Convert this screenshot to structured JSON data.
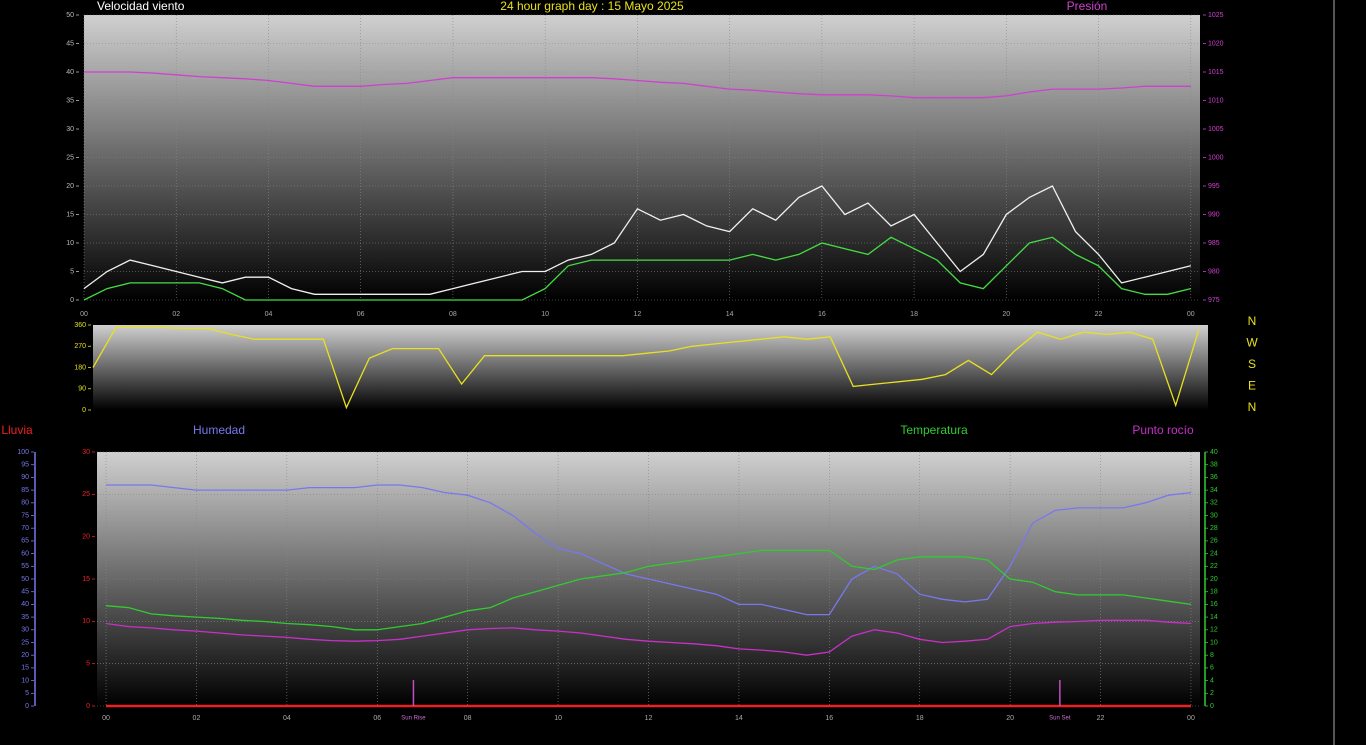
{
  "chart_data": [
    {
      "type": "line",
      "title": "24 hour graph day : 15 Mayo 2025",
      "ylabel": "Velocidad viento",
      "x": [
        0,
        0.5,
        1,
        1.5,
        2,
        2.5,
        3,
        3.5,
        4,
        4.5,
        5,
        5.5,
        6,
        6.5,
        7,
        7.5,
        8,
        8.5,
        9,
        9.5,
        10,
        10.5,
        11,
        11.5,
        12,
        12.5,
        13,
        13.5,
        14,
        14.5,
        15,
        15.5,
        16,
        16.5,
        17,
        17.5,
        18,
        18.5,
        19,
        19.5,
        20,
        20.5,
        21,
        21.5,
        22,
        22.5,
        23,
        23.5,
        24
      ],
      "xlim": [
        0,
        24.2
      ],
      "xticks": [
        {
          "value": 0,
          "label": "00"
        },
        {
          "value": 2,
          "label": "02"
        },
        {
          "value": 4,
          "label": "04"
        },
        {
          "value": 6,
          "label": "06"
        },
        {
          "value": 8,
          "label": "08"
        },
        10,
        12,
        14,
        16,
        18,
        20,
        22,
        {
          "value": 24,
          "label": "00"
        }
      ],
      "ylim": [
        0,
        50
      ],
      "yticks": [
        0,
        5,
        10,
        15,
        20,
        25,
        30,
        35,
        40,
        45,
        50
      ],
      "y2lim": [
        975,
        1025
      ],
      "y2ticks": [
        975,
        980,
        985,
        990,
        995,
        1000,
        1005,
        1010,
        1015,
        1020,
        1025
      ],
      "grid": true,
      "series": [
        {
          "color": "#f0f0f0",
          "values": [
            2,
            5,
            7,
            6,
            5,
            4,
            3,
            4,
            4,
            2,
            1,
            1,
            1,
            1,
            1,
            1,
            2,
            3,
            4,
            5,
            5,
            7,
            8,
            10,
            16,
            14,
            15,
            13,
            12,
            16,
            14,
            18,
            20,
            15,
            17,
            13,
            15,
            10,
            5,
            8,
            15,
            18,
            20,
            12,
            8,
            3,
            4,
            5,
            6
          ]
        },
        {
          "color": "#44dd44",
          "values": [
            0,
            2,
            3,
            3,
            3,
            3,
            2,
            0,
            0,
            0,
            0,
            0,
            0,
            0,
            0,
            0,
            0,
            0,
            0,
            0,
            2,
            6,
            7,
            7,
            7,
            7,
            7,
            7,
            7,
            8,
            7,
            8,
            10,
            9,
            8,
            11,
            9,
            7,
            3,
            2,
            6,
            10,
            11,
            8,
            6,
            2,
            1,
            1,
            2
          ]
        },
        {
          "name": "Presión",
          "axis": "y2",
          "color": "#d040d0",
          "values": [
            1015,
            1015,
            1015,
            1014.8,
            1014.5,
            1014.2,
            1014,
            1013.8,
            1013.5,
            1013,
            1012.5,
            1012.5,
            1012.5,
            1012.8,
            1013,
            1013.5,
            1014,
            1014,
            1014,
            1014,
            1014,
            1014,
            1014,
            1013.8,
            1013.5,
            1013.2,
            1013,
            1012.5,
            1012,
            1011.8,
            1011.5,
            1011.2,
            1011,
            1011,
            1011,
            1010.8,
            1010.5,
            1010.5,
            1010.5,
            1010.5,
            1010.8,
            1011.5,
            1012,
            1012,
            1012,
            1012.2,
            1012.5,
            1012.5,
            1012.5
          ]
        }
      ]
    },
    {
      "type": "line",
      "x": [
        0,
        0.5,
        1,
        1.5,
        2,
        2.5,
        3,
        3.5,
        4,
        4.5,
        5,
        5.5,
        6,
        6.5,
        7,
        7.5,
        8,
        8.5,
        9,
        9.5,
        10,
        10.5,
        11,
        11.5,
        12,
        12.5,
        13,
        13.5,
        14,
        14.5,
        15,
        15.5,
        16,
        16.5,
        17,
        17.5,
        18,
        18.5,
        19,
        19.5,
        20,
        20.5,
        21,
        21.5,
        22,
        22.5,
        23,
        23.5,
        24
      ],
      "xlim": [
        0,
        24.2
      ],
      "ylim": [
        0,
        360
      ],
      "yticks": [
        0,
        90,
        180,
        270,
        360
      ],
      "compass_labels": [
        "N",
        "W",
        "S",
        "E",
        "N"
      ],
      "series": [
        {
          "color": "#e8e020",
          "values": [
            180,
            350,
            350,
            350,
            345,
            345,
            320,
            300,
            300,
            300,
            300,
            10,
            220,
            260,
            260,
            260,
            110,
            230,
            230,
            230,
            230,
            230,
            230,
            230,
            240,
            250,
            270,
            280,
            290,
            300,
            310,
            300,
            310,
            100,
            110,
            120,
            130,
            150,
            210,
            150,
            250,
            330,
            300,
            330,
            320,
            330,
            300,
            20,
            340
          ]
        }
      ]
    },
    {
      "type": "line",
      "x": [
        0,
        0.5,
        1,
        1.5,
        2,
        2.5,
        3,
        3.5,
        4,
        4.5,
        5,
        5.5,
        6,
        6.5,
        7,
        7.5,
        8,
        8.5,
        9,
        9.5,
        10,
        10.5,
        11,
        11.5,
        12,
        12.5,
        13,
        13.5,
        14,
        14.5,
        15,
        15.5,
        16,
        16.5,
        17,
        17.5,
        18,
        18.5,
        19,
        19.5,
        20,
        20.5,
        21,
        21.5,
        22,
        22.5,
        23,
        23.5,
        24
      ],
      "xlim": [
        -0.2,
        24.2
      ],
      "xticks": [
        {
          "value": 0,
          "label": "00"
        },
        {
          "value": 2,
          "label": "02"
        },
        {
          "value": 4,
          "label": "04"
        },
        {
          "value": 6,
          "label": "06"
        },
        {
          "value": 8,
          "label": "08"
        },
        10,
        12,
        14,
        16,
        18,
        20,
        22,
        {
          "value": 24,
          "label": "00"
        }
      ],
      "ylim": [
        0,
        30
      ],
      "yticks": [
        0,
        5,
        10,
        15,
        20,
        25,
        30
      ],
      "y2lim": [
        0,
        40
      ],
      "y2ticks": [
        0,
        2,
        4,
        6,
        8,
        10,
        12,
        14,
        16,
        18,
        20,
        22,
        24,
        26,
        28,
        30,
        32,
        34,
        36,
        38,
        40
      ],
      "y3lim": [
        0,
        100
      ],
      "y3ticks": [
        0,
        5,
        10,
        15,
        20,
        25,
        30,
        35,
        40,
        45,
        50,
        55,
        60,
        65,
        70,
        75,
        80,
        85,
        90,
        95,
        100
      ],
      "grid": true,
      "annotations": [
        {
          "x": 6.8,
          "label": "Sun Rise"
        },
        {
          "x": 21.1,
          "label": "Sun Set"
        }
      ],
      "series": [
        {
          "name": "Lluvia",
          "color": "#ee2020",
          "values": [
            0,
            0,
            0,
            0,
            0,
            0,
            0,
            0,
            0,
            0,
            0,
            0,
            0,
            0,
            0,
            0,
            0,
            0,
            0,
            0,
            0,
            0,
            0,
            0,
            0,
            0,
            0,
            0,
            0,
            0,
            0,
            0,
            0,
            0,
            0,
            0,
            0,
            0,
            0,
            0,
            0,
            0,
            0,
            0,
            0,
            0,
            0,
            0,
            0
          ]
        },
        {
          "name": "Humedad",
          "axis": "y3",
          "color": "#7878ee",
          "values": [
            87,
            87,
            87,
            86,
            85,
            85,
            85,
            85,
            85,
            86,
            86,
            86,
            87,
            87,
            86,
            84,
            83,
            80,
            75,
            68,
            62,
            60,
            56,
            52,
            50,
            48,
            46,
            44,
            40,
            40,
            38,
            36,
            36,
            50,
            55,
            52,
            44,
            42,
            41,
            42,
            55,
            72,
            77,
            78,
            78,
            78,
            80,
            83,
            84
          ]
        },
        {
          "name": "Temperatura",
          "axis": "y2",
          "color": "#30cc30",
          "values": [
            15.8,
            15.5,
            14.5,
            14.2,
            14,
            13.8,
            13.5,
            13.3,
            13,
            12.8,
            12.5,
            12,
            12,
            12.5,
            13,
            14,
            15,
            15.5,
            17,
            18,
            19,
            20,
            20.5,
            21,
            22,
            22.5,
            23,
            23.5,
            24,
            24.5,
            24.5,
            24.5,
            24.5,
            22,
            21.5,
            23,
            23.5,
            23.5,
            23.5,
            23,
            20,
            19.5,
            18,
            17.5,
            17.5,
            17.5,
            17,
            16.5,
            16
          ]
        },
        {
          "name": "Punto rocío",
          "axis": "y2",
          "color": "#c830c8",
          "values": [
            13,
            12.5,
            12.3,
            12,
            11.8,
            11.5,
            11.2,
            11,
            10.8,
            10.5,
            10.3,
            10.2,
            10.3,
            10.5,
            11,
            11.5,
            12,
            12.2,
            12.3,
            12,
            11.8,
            11.5,
            11,
            10.5,
            10.2,
            10,
            9.8,
            9.5,
            9,
            8.8,
            8.5,
            8,
            8.5,
            11,
            12,
            11.5,
            10.5,
            10,
            10.2,
            10.5,
            12.5,
            13,
            13.2,
            13.3,
            13.5,
            13.5,
            13.5,
            13.2,
            13
          ]
        }
      ]
    }
  ]
}
